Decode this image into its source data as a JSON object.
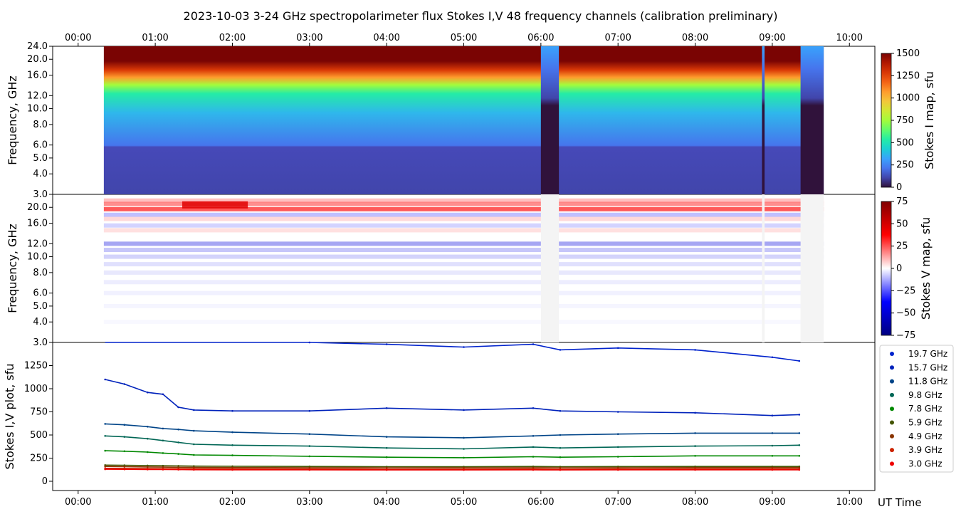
{
  "header": {
    "title": "2023-10-03      3-24 GHz spectropolarimeter flux   Stokes I,V   48 frequency channels   (calibration preliminary)"
  },
  "x_axis": {
    "label": "UT Time",
    "ticks": [
      "00:00",
      "01:00",
      "02:00",
      "03:00",
      "04:00",
      "05:00",
      "06:00",
      "07:00",
      "08:00",
      "09:00",
      "10:00"
    ],
    "range_hours": [
      -0.33,
      10.33
    ]
  },
  "colors": {
    "stokes_i_map": [
      "#30123b",
      "#4145ab",
      "#4675ed",
      "#39a2fc",
      "#1bcfd4",
      "#24eca6",
      "#61fc6c",
      "#a4fc3b",
      "#d1e834",
      "#f3c63a",
      "#fe9b2d",
      "#f36315",
      "#d93806",
      "#b11901",
      "#7a0403"
    ],
    "stokes_v_map": [
      "#000080",
      "#0000ff",
      "#ffffff",
      "#ff0000",
      "#800000"
    ]
  },
  "chart_data": [
    {
      "type": "heatmap",
      "name": "stokes_i_map",
      "ylabel": "Frequency, GHz",
      "yticks": [
        "3.0",
        "4.0",
        "5.0",
        "6.0",
        "8.0",
        "10.0",
        "12.0",
        "16.0",
        "20.0",
        "24.0"
      ],
      "ylim_ghz": [
        3.0,
        24.0
      ],
      "yscale": "log",
      "colorbar": {
        "label": "Stokes I map, sfu",
        "ticks": [
          "0",
          "250",
          "500",
          "750",
          "1000",
          "1250",
          "1500"
        ],
        "range": [
          0,
          1500
        ]
      },
      "data_start_ut": "00:20",
      "data_end_ut": "09:40",
      "gaps_ut": [
        [
          "06:00",
          "06:14"
        ],
        [
          "08:52",
          "08:54"
        ],
        [
          "09:22",
          "09:40"
        ]
      ]
    },
    {
      "type": "heatmap",
      "name": "stokes_v_map",
      "ylabel": "Frequency, GHz",
      "yticks": [
        "3.0",
        "4.0",
        "5.0",
        "6.0",
        "8.0",
        "10.0",
        "12.0",
        "16.0",
        "20.0"
      ],
      "ylim_ghz": [
        3.0,
        24.0
      ],
      "yscale": "log",
      "colorbar": {
        "label": "Stokes V map, sfu",
        "ticks": [
          "75",
          "50",
          "25",
          "0",
          "−25",
          "−50",
          "−75"
        ],
        "range": [
          -75,
          75
        ]
      }
    },
    {
      "type": "line",
      "name": "stokes_iv_plot",
      "ylabel": "Stokes I,V plot, sfu",
      "yticks": [
        "0",
        "250",
        "500",
        "750",
        "1000",
        "1250"
      ],
      "ylim": [
        -100,
        1500
      ],
      "x_hours": [
        0.35,
        0.6,
        0.9,
        1.1,
        1.3,
        1.5,
        2.0,
        3.0,
        4.0,
        5.0,
        5.9,
        6.25,
        7.0,
        8.0,
        9.0,
        9.35
      ],
      "series": [
        {
          "name": "19.7 GHz",
          "color": "#0022cc",
          "values": [
            1590,
            1580,
            1560,
            1560,
            1540,
            1520,
            1510,
            1500,
            1480,
            1450,
            1480,
            1420,
            1440,
            1420,
            1340,
            1300
          ]
        },
        {
          "name": "15.7 GHz",
          "color": "#0022bb",
          "values": [
            1100,
            1050,
            960,
            940,
            800,
            770,
            760,
            760,
            790,
            770,
            790,
            760,
            750,
            740,
            710,
            720
          ]
        },
        {
          "name": "11.8 GHz",
          "color": "#004488",
          "values": [
            620,
            610,
            590,
            570,
            560,
            545,
            530,
            510,
            480,
            470,
            490,
            500,
            510,
            520,
            520,
            520
          ]
        },
        {
          "name": "9.8 GHz",
          "color": "#006655",
          "values": [
            490,
            480,
            460,
            440,
            420,
            400,
            390,
            380,
            360,
            350,
            370,
            360,
            370,
            380,
            385,
            390
          ]
        },
        {
          "name": "7.8 GHz",
          "color": "#008800",
          "values": [
            330,
            325,
            315,
            305,
            295,
            285,
            280,
            270,
            260,
            255,
            265,
            260,
            265,
            275,
            275,
            275
          ]
        },
        {
          "name": "5.9 GHz",
          "color": "#445500",
          "values": [
            175,
            173,
            170,
            168,
            166,
            164,
            162,
            160,
            158,
            157,
            160,
            158,
            159,
            160,
            160,
            160
          ]
        },
        {
          "name": "4.9 GHz",
          "color": "#883300",
          "values": [
            160,
            158,
            155,
            153,
            151,
            149,
            148,
            147,
            146,
            145,
            147,
            146,
            147,
            148,
            148,
            148
          ]
        },
        {
          "name": "3.9 GHz",
          "color": "#cc2200",
          "values": [
            140,
            139,
            137,
            136,
            135,
            134,
            133,
            132,
            131,
            130,
            132,
            131,
            132,
            133,
            133,
            133
          ]
        },
        {
          "name": "3.0 GHz",
          "color": "#ee0000",
          "values": [
            130,
            129,
            128,
            127,
            126,
            125,
            124,
            123,
            122,
            122,
            123,
            122,
            123,
            124,
            124,
            124
          ]
        }
      ]
    }
  ]
}
